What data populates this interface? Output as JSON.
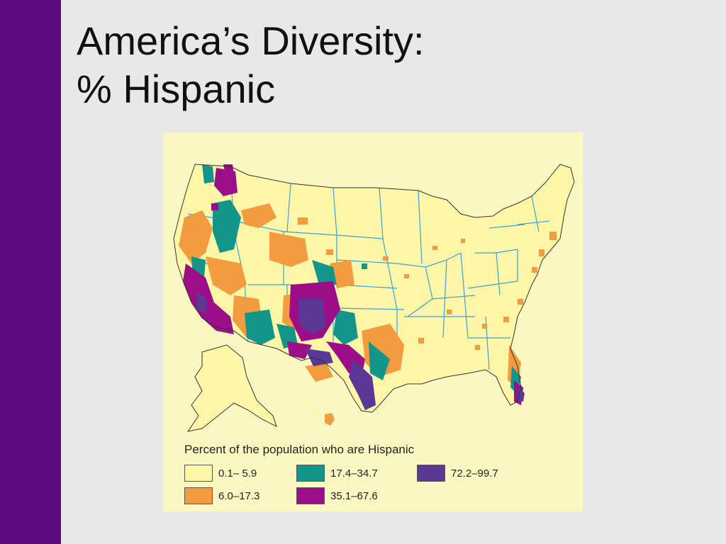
{
  "slide": {
    "title_line1": "America’s Diversity:",
    "title_line2": "% Hispanic",
    "accent_color": "#5b0b7f",
    "background_color": "#e8e8e8"
  },
  "map": {
    "background_color": "#fbf7c1",
    "land_color": "#fff6a8",
    "water_color": "#3aa0d8",
    "legend": {
      "title": "Percent of the population who are Hispanic",
      "items": [
        {
          "label": "0.1– 5.9",
          "color": "#fff6a8"
        },
        {
          "label": "6.0–17.3",
          "color": "#f39c3f"
        },
        {
          "label": "17.4–34.7",
          "color": "#13958a"
        },
        {
          "label": "35.1–67.6",
          "color": "#9b0e87"
        },
        {
          "label": "72.2–99.7",
          "color": "#5b3796"
        }
      ]
    }
  }
}
